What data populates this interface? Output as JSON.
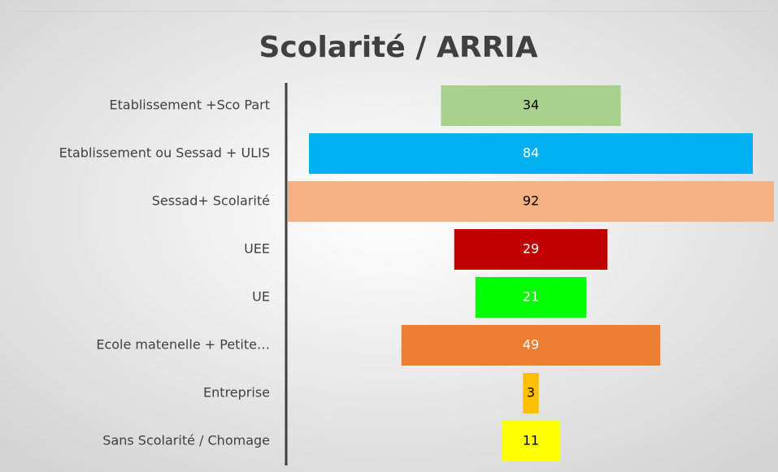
{
  "chart_data": {
    "type": "funnel",
    "title": "Scolarité / ARRIA",
    "categories": [
      "Etablissement +Sco Part",
      "Etablissement ou Sessad + ULIS",
      "Sessad+ Scolarité",
      "UEE",
      "UE",
      "Ecole matenelle + Petite…",
      "Entreprise",
      "Sans Scolarité / Chomage"
    ],
    "values": [
      34,
      84,
      92,
      29,
      21,
      49,
      3,
      11
    ],
    "colors": [
      "#a9d18e",
      "#00b0f0",
      "#f4b183",
      "#c00000",
      "#00ff00",
      "#ed7d31",
      "#ffc000",
      "#ffff00"
    ]
  }
}
